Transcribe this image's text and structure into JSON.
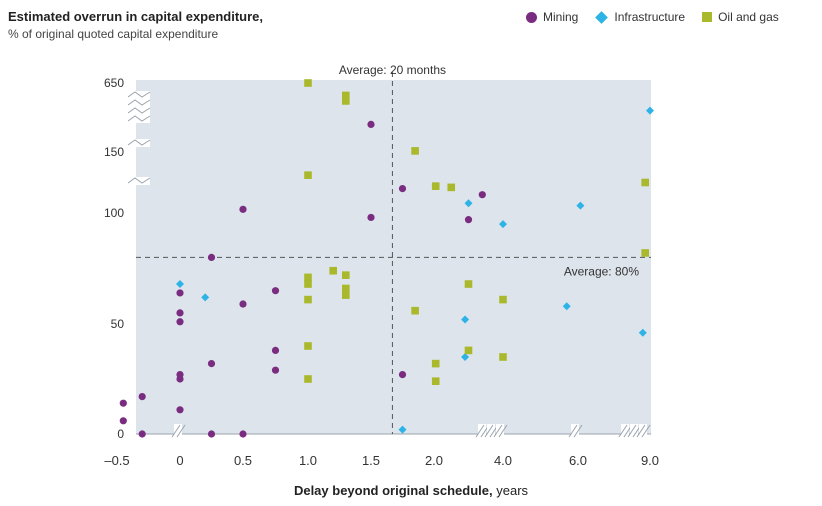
{
  "chart_data": {
    "type": "scatter",
    "title": "Estimated overrun in capital expenditure,",
    "subtitle": "% of original quoted capital expenditure",
    "xlabel_bold": "Delay beyond original schedule,",
    "xlabel_unit": "years",
    "x_ticks": [
      "–0.5",
      "0",
      "0.5",
      "1.0",
      "1.5",
      "2.0",
      "4.0",
      "6.0",
      "9.0"
    ],
    "x_tick_values": [
      -0.5,
      0,
      0.5,
      1.0,
      1.5,
      2.0,
      4.0,
      6.0,
      9.0
    ],
    "y_ticks": [
      "650",
      "150",
      "100",
      "50",
      "0"
    ],
    "y_tick_values": [
      650,
      150,
      100,
      50,
      0
    ],
    "axis_breaks": true,
    "grid": false,
    "legend_position": "top-right",
    "avg_x_label": "Average: 20 months",
    "avg_x_value_years": 1.67,
    "avg_y_label": "Average: 80%",
    "avg_y_value": 80,
    "series": [
      {
        "name": "Mining",
        "color": "#7a2d80",
        "marker": "circle",
        "points": [
          [
            -0.45,
            14
          ],
          [
            -0.45,
            6
          ],
          [
            -0.3,
            17
          ],
          [
            -0.3,
            0
          ],
          [
            0,
            27
          ],
          [
            0,
            25
          ],
          [
            0,
            11
          ],
          [
            0,
            64
          ],
          [
            0,
            55
          ],
          [
            0,
            51
          ],
          [
            0.25,
            80
          ],
          [
            0.25,
            32
          ],
          [
            0.25,
            0
          ],
          [
            0.5,
            103
          ],
          [
            0.5,
            59
          ],
          [
            0.5,
            0
          ],
          [
            0.75,
            65
          ],
          [
            0.75,
            38
          ],
          [
            0.75,
            29
          ],
          [
            1.5,
            350
          ],
          [
            1.5,
            98
          ],
          [
            1.75,
            120
          ],
          [
            1.75,
            27
          ],
          [
            3.0,
            97
          ],
          [
            3.4,
            115
          ]
        ]
      },
      {
        "name": "Infrastructure",
        "color": "#2db3e6",
        "marker": "diamond",
        "points": [
          [
            0,
            68
          ],
          [
            0.2,
            62
          ],
          [
            1.75,
            2
          ],
          [
            2.9,
            52
          ],
          [
            2.9,
            35
          ],
          [
            3.0,
            108
          ],
          [
            4.0,
            95
          ],
          [
            5.7,
            58
          ],
          [
            6.1,
            106
          ],
          [
            8.7,
            46
          ],
          [
            9.0,
            450
          ]
        ]
      },
      {
        "name": "Oil and gas",
        "color": "#a9b92b",
        "marker": "square",
        "points": [
          [
            1.0,
            650
          ],
          [
            1.0,
            131
          ],
          [
            1.0,
            71
          ],
          [
            1.0,
            68
          ],
          [
            1.0,
            61
          ],
          [
            1.0,
            40
          ],
          [
            1.0,
            25
          ],
          [
            1.2,
            74
          ],
          [
            1.3,
            560
          ],
          [
            1.3,
            520
          ],
          [
            1.3,
            72
          ],
          [
            1.3,
            66
          ],
          [
            1.3,
            63
          ],
          [
            1.85,
            158
          ],
          [
            1.85,
            56
          ],
          [
            2.05,
            122
          ],
          [
            2.05,
            32
          ],
          [
            2.05,
            24
          ],
          [
            2.5,
            121
          ],
          [
            3.0,
            68
          ],
          [
            3.0,
            38
          ],
          [
            4.0,
            61
          ],
          [
            4.0,
            35
          ],
          [
            8.8,
            125
          ],
          [
            8.8,
            82
          ]
        ]
      }
    ]
  }
}
